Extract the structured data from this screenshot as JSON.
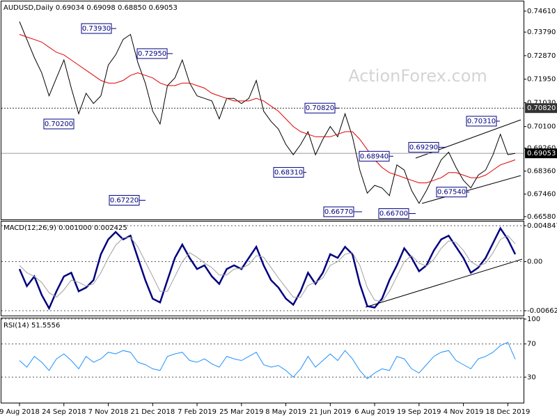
{
  "chart_data": [
    {
      "type": "line",
      "title": "AUDUSD,Daily  0.69034 0.69098 0.68850 0.69053",
      "watermark": "ActionForex.com",
      "categories": [
        "9 Aug 2018",
        null,
        null,
        null,
        null,
        null,
        "24 Sep 2018",
        null,
        null,
        null,
        null,
        null,
        "7 Nov 2018",
        null,
        null,
        null,
        null,
        null,
        "21 Dec 2018",
        null,
        null,
        null,
        null,
        null,
        "7 Feb 2019",
        null,
        null,
        null,
        null,
        null,
        "25 Mar 2019",
        null,
        null,
        null,
        null,
        null,
        "8 May 2019",
        null,
        null,
        null,
        null,
        null,
        "21 Jun 2019",
        null,
        null,
        null,
        null,
        null,
        "6 Aug 2019",
        null,
        null,
        null,
        null,
        null,
        "19 Sep 2019",
        null,
        null,
        null,
        null,
        null,
        "4 Nov 2019",
        null,
        null,
        null,
        null,
        null,
        "18 Dec 2019",
        null
      ],
      "series": [
        {
          "color": "#000000",
          "values": [
            0.742,
            0.735,
            0.728,
            0.722,
            0.713,
            0.72,
            0.727,
            0.716,
            0.706,
            0.714,
            0.71,
            0.713,
            0.725,
            0.729,
            0.735,
            0.737,
            0.726,
            0.718,
            0.707,
            0.702,
            0.717,
            0.72,
            0.727,
            0.718,
            0.713,
            0.712,
            0.711,
            0.704,
            0.712,
            0.712,
            0.71,
            0.712,
            0.719,
            0.707,
            0.703,
            0.7,
            0.694,
            0.69,
            0.694,
            0.699,
            0.69,
            0.696,
            0.701,
            0.697,
            0.706,
            0.697,
            0.684,
            0.675,
            0.678,
            0.677,
            0.674,
            0.686,
            0.684,
            0.676,
            0.671,
            0.676,
            0.682,
            0.688,
            0.691,
            0.685,
            0.68,
            0.677,
            0.682,
            0.684,
            0.69,
            0.698,
            0.69,
            0.69053
          ]
        },
        {
          "color": "#e00000",
          "values": [
            0.737,
            0.736,
            0.735,
            0.734,
            0.732,
            0.73,
            0.729,
            0.727,
            0.725,
            0.723,
            0.721,
            0.719,
            0.718,
            0.718,
            0.719,
            0.721,
            0.722,
            0.721,
            0.72,
            0.718,
            0.717,
            0.717,
            0.718,
            0.718,
            0.717,
            0.716,
            0.714,
            0.713,
            0.712,
            0.711,
            0.711,
            0.711,
            0.712,
            0.711,
            0.709,
            0.707,
            0.704,
            0.701,
            0.699,
            0.698,
            0.697,
            0.697,
            0.697,
            0.698,
            0.699,
            0.699,
            0.696,
            0.692,
            0.688,
            0.685,
            0.683,
            0.682,
            0.681,
            0.68,
            0.679,
            0.679,
            0.68,
            0.681,
            0.683,
            0.683,
            0.682,
            0.681,
            0.681,
            0.682,
            0.684,
            0.686,
            0.687,
            0.688
          ]
        }
      ],
      "ylim": [
        0.6647,
        0.7499
      ],
      "yticks": [
        {
          "value": 0.7461,
          "label": "0.74610"
        },
        {
          "value": 0.7379,
          "label": "0.73790"
        },
        {
          "value": 0.7287,
          "label": "0.72870"
        },
        {
          "value": 0.7195,
          "label": "0.71950"
        },
        {
          "value": 0.7103,
          "label": "0.71030"
        },
        {
          "value": 0.701,
          "label": "0.70100"
        },
        {
          "value": 0.6926,
          "label": "0.69260"
        },
        {
          "value": 0.6836,
          "label": "0.68360"
        },
        {
          "value": 0.6746,
          "label": "0.67460"
        },
        {
          "value": 0.6658,
          "label": "0.66580"
        }
      ],
      "grid": false,
      "hlines": [
        {
          "value": 0.7082,
          "label": "0.70820",
          "color": "#333333"
        },
        {
          "value": 0.69053,
          "label": "0.69053",
          "color": "#000000"
        }
      ],
      "annotations": [
        {
          "value": 0.7393,
          "label": "0.73930"
        },
        {
          "value": 0.7295,
          "label": "0.72950"
        },
        {
          "value": 0.702,
          "label": "0.70200"
        },
        {
          "value": 0.6722,
          "label": "0.67220"
        },
        {
          "value": 0.6831,
          "label": "0.68310"
        },
        {
          "value": 0.7082,
          "label": "0.70820"
        },
        {
          "value": 0.6677,
          "label": "0.66770"
        },
        {
          "value": 0.6894,
          "label": "0.68940"
        },
        {
          "value": 0.667,
          "label": "0.66700"
        },
        {
          "value": 0.6929,
          "label": "0.69290"
        },
        {
          "value": 0.6754,
          "label": "0.67540"
        },
        {
          "value": 0.7031,
          "label": "0.70310"
        }
      ]
    },
    {
      "type": "line",
      "title": "MACD(12,26,9) 0.001000 0.002425",
      "series": [
        {
          "color": "#000080",
          "values": [
            -0.001,
            -0.0033,
            -0.002,
            -0.0045,
            -0.0063,
            -0.004,
            -0.002,
            -0.0015,
            -0.004,
            -0.0035,
            -0.0025,
            0.001,
            0.003,
            0.004,
            0.003,
            0.0035,
            0.0005,
            -0.0025,
            -0.005,
            -0.0055,
            -0.0025,
            0.0005,
            0.0023,
            0.0005,
            -0.001,
            -0.0005,
            -0.002,
            -0.003,
            -0.001,
            -0.0005,
            -0.001,
            0.0005,
            0.002,
            -0.0005,
            -0.0025,
            -0.0035,
            -0.005,
            -0.0058,
            -0.004,
            -0.0015,
            -0.003,
            -0.0015,
            0.001,
            0.0005,
            0.002,
            0.001,
            -0.003,
            -0.006,
            -0.0062,
            -0.005,
            -0.0025,
            -0.0005,
            0.0018,
            0.0005,
            -0.0013,
            -0.0005,
            0.0015,
            0.003,
            0.0035,
            0.002,
            0.0005,
            -0.0015,
            -0.0008,
            0.0005,
            0.0025,
            0.0045,
            0.003,
            0.001
          ]
        },
        {
          "color": "#a0a0a0",
          "values": [
            -0.0005,
            -0.0015,
            -0.002,
            -0.0028,
            -0.0042,
            -0.0048,
            -0.0038,
            -0.0025,
            -0.0028,
            -0.0033,
            -0.003,
            -0.0015,
            0.0005,
            0.0022,
            0.0032,
            0.0033,
            0.002,
            0.0,
            -0.002,
            -0.004,
            -0.004,
            -0.002,
            0.0,
            0.0012,
            0.0006,
            -0.0002,
            -0.0008,
            -0.0018,
            -0.0018,
            -0.001,
            -0.0009,
            -0.0004,
            0.0008,
            0.0006,
            -0.0008,
            -0.0022,
            -0.0035,
            -0.0048,
            -0.0048,
            -0.0032,
            -0.0028,
            -0.0022,
            -0.0005,
            0.0,
            0.001,
            0.0012,
            -0.0005,
            -0.0035,
            -0.0052,
            -0.0054,
            -0.004,
            -0.002,
            0.0,
            0.0008,
            -0.0002,
            -0.0006,
            0.0003,
            0.0018,
            0.0028,
            0.0026,
            0.0015,
            0.0,
            -0.0006,
            -0.0002,
            0.0012,
            0.003,
            0.0035,
            0.002425
          ]
        }
      ],
      "ylim": [
        -0.00728,
        0.00541
      ],
      "yticks": [
        0.004847,
        {
          "value": 0,
          "label": "0.00"
        },
        -0.006624
      ],
      "grid": true
    },
    {
      "type": "line",
      "title": "RSI(14) 51.5556",
      "series": [
        {
          "color": "#1e90ff",
          "values": [
            50,
            42,
            55,
            48,
            38,
            52,
            58,
            50,
            40,
            55,
            48,
            52,
            60,
            58,
            62,
            60,
            48,
            45,
            40,
            38,
            55,
            58,
            60,
            50,
            48,
            52,
            46,
            42,
            55,
            52,
            50,
            55,
            60,
            45,
            42,
            44,
            38,
            30,
            40,
            55,
            42,
            50,
            58,
            50,
            62,
            52,
            38,
            28,
            35,
            40,
            38,
            55,
            52,
            40,
            35,
            45,
            55,
            60,
            62,
            50,
            45,
            40,
            52,
            55,
            60,
            68,
            72,
            51.5556
          ]
        }
      ],
      "ylim": [
        0,
        100
      ],
      "yticks": [
        100,
        70,
        30
      ],
      "grid": true
    }
  ]
}
